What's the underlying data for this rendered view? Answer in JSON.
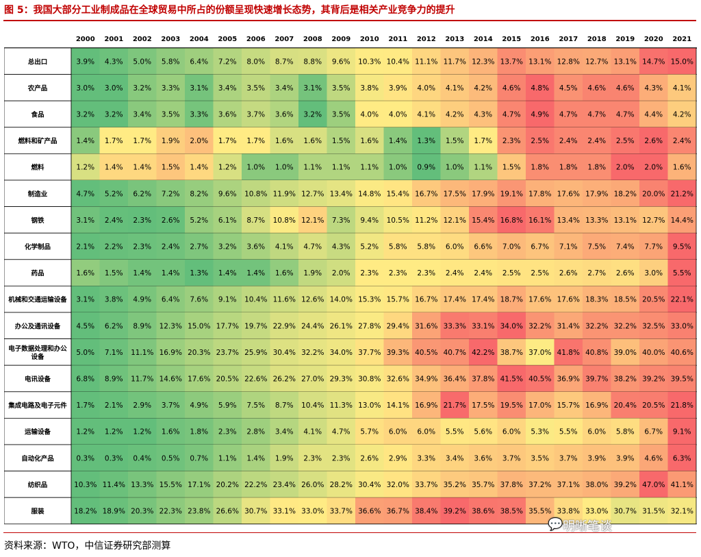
{
  "header": {
    "title": "图 5：我国大部分工业制成品在全球贸易中所占的份额呈现快速增长态势，其背后是相关产业竞争力的提升"
  },
  "footer": {
    "source": "资料来源：WTO，中信证券研究部测算",
    "watermark": "明晰笔谈"
  },
  "chart_data": {
    "type": "heatmap",
    "title": "图 5：我国大部分工业制成品在全球贸易中所占的份额呈现快速增长态势，其背后是相关产业竞争力的提升",
    "x": [
      "2000",
      "2001",
      "2002",
      "2003",
      "2004",
      "2005",
      "2006",
      "2007",
      "2008",
      "2009",
      "2010",
      "2011",
      "2012",
      "2013",
      "2014",
      "2015",
      "2016",
      "2017",
      "2018",
      "2019",
      "2020",
      "2021"
    ],
    "value_format": "percent_one_decimal",
    "color_scale": "per-row: green (low) -> yellow (mid) -> red (high)",
    "colors": {
      "low": "#63BE7B",
      "mid": "#FFEB84",
      "high": "#F8696B",
      "rule": "#C00000"
    },
    "rows": [
      {
        "label": "总出口",
        "values": [
          3.9,
          4.3,
          5.0,
          5.8,
          6.4,
          7.2,
          8.0,
          8.7,
          8.8,
          9.6,
          10.3,
          10.4,
          11.1,
          11.7,
          12.3,
          13.7,
          13.1,
          12.8,
          12.7,
          13.1,
          14.7,
          15.0
        ]
      },
      {
        "label": "农产品",
        "values": [
          3.0,
          3.0,
          3.2,
          3.3,
          3.1,
          3.4,
          3.5,
          3.4,
          3.1,
          3.5,
          3.8,
          3.9,
          4.0,
          4.1,
          4.2,
          4.6,
          4.8,
          4.5,
          4.6,
          4.6,
          4.3,
          4.1
        ]
      },
      {
        "label": "食品",
        "values": [
          3.2,
          3.2,
          3.4,
          3.5,
          3.3,
          3.6,
          3.7,
          3.6,
          3.2,
          3.5,
          4.0,
          4.0,
          4.1,
          4.2,
          4.3,
          4.7,
          4.9,
          4.7,
          4.7,
          4.7,
          4.4,
          4.2
        ]
      },
      {
        "label": "燃料和矿产品",
        "values": [
          1.4,
          1.7,
          1.7,
          1.9,
          2.0,
          1.7,
          1.7,
          1.6,
          1.6,
          1.5,
          1.6,
          1.4,
          1.3,
          1.5,
          1.7,
          2.3,
          2.5,
          2.4,
          2.4,
          2.5,
          2.6,
          2.4
        ]
      },
      {
        "label": "燃料",
        "values": [
          1.2,
          1.4,
          1.4,
          1.5,
          1.4,
          1.2,
          1.0,
          1.0,
          1.1,
          1.1,
          1.1,
          1.0,
          0.9,
          1.0,
          1.1,
          1.5,
          1.8,
          1.8,
          1.8,
          2.0,
          2.0,
          1.6
        ]
      },
      {
        "label": "制造业",
        "values": [
          4.7,
          5.2,
          6.2,
          7.2,
          8.2,
          9.6,
          10.8,
          11.9,
          12.7,
          13.4,
          14.8,
          15.4,
          16.7,
          17.5,
          17.9,
          19.1,
          17.8,
          17.6,
          17.9,
          18.2,
          20.0,
          21.2
        ]
      },
      {
        "label": "钢铁",
        "values": [
          3.1,
          2.4,
          2.3,
          2.6,
          5.2,
          6.1,
          8.7,
          10.8,
          12.1,
          7.3,
          9.4,
          10.5,
          11.2,
          12.1,
          15.4,
          16.8,
          16.1,
          13.4,
          13.3,
          13.1,
          12.7,
          14.4
        ]
      },
      {
        "label": "化学制品",
        "values": [
          2.1,
          2.2,
          2.3,
          2.4,
          2.7,
          3.2,
          3.6,
          4.1,
          4.7,
          4.3,
          5.2,
          5.8,
          5.8,
          6.0,
          6.6,
          7.0,
          6.7,
          7.1,
          7.5,
          7.4,
          7.7,
          9.5
        ]
      },
      {
        "label": "药品",
        "values": [
          1.6,
          1.5,
          1.4,
          1.4,
          1.3,
          1.4,
          1.4,
          1.6,
          1.9,
          2.0,
          2.3,
          2.3,
          2.3,
          2.4,
          2.4,
          2.5,
          2.5,
          2.6,
          2.7,
          2.6,
          3.0,
          5.5
        ]
      },
      {
        "label": "机械和交通运输设备",
        "values": [
          3.1,
          3.8,
          4.9,
          6.4,
          7.6,
          9.1,
          10.4,
          11.6,
          12.6,
          14.0,
          15.3,
          15.7,
          16.7,
          17.4,
          17.4,
          18.7,
          17.6,
          17.6,
          18.3,
          18.5,
          20.5,
          22.1
        ]
      },
      {
        "label": "办公及通讯设备",
        "values": [
          4.5,
          6.2,
          8.9,
          12.3,
          15.0,
          17.7,
          19.7,
          22.9,
          24.4,
          26.1,
          27.8,
          29.4,
          31.6,
          33.3,
          33.1,
          34.0,
          32.2,
          31.4,
          32.2,
          32.2,
          32.5,
          33.0
        ]
      },
      {
        "label": "电子数据处理和办公设备",
        "values": [
          5.0,
          7.1,
          11.1,
          16.9,
          20.3,
          23.7,
          25.9,
          30.4,
          32.2,
          34.0,
          37.7,
          39.3,
          40.5,
          40.7,
          42.2,
          38.7,
          37.0,
          41.8,
          40.8,
          39.0,
          40.0,
          40.6
        ]
      },
      {
        "label": "电讯设备",
        "values": [
          6.8,
          8.9,
          11.7,
          14.6,
          17.6,
          20.5,
          22.6,
          26.2,
          27.0,
          29.3,
          30.8,
          32.6,
          34.9,
          36.4,
          37.8,
          41.5,
          40.5,
          36.9,
          39.7,
          38.2,
          39.2,
          39.5
        ]
      },
      {
        "label": "集成电路及电子元件",
        "values": [
          1.7,
          2.1,
          2.9,
          3.7,
          4.9,
          5.9,
          7.5,
          8.7,
          10.4,
          11.3,
          13.0,
          14.1,
          16.9,
          21.7,
          17.5,
          19.5,
          17.0,
          15.7,
          16.9,
          20.4,
          20.5,
          21.8
        ]
      },
      {
        "label": "运输设备",
        "values": [
          1.2,
          1.2,
          1.2,
          1.6,
          1.8,
          2.3,
          2.8,
          3.4,
          4.1,
          4.7,
          5.7,
          6.0,
          6.0,
          5.5,
          5.6,
          6.0,
          5.3,
          5.5,
          6.0,
          5.8,
          6.7,
          9.1
        ]
      },
      {
        "label": "自动化产品",
        "values": [
          0.3,
          0.3,
          0.4,
          0.5,
          0.7,
          1.1,
          1.4,
          1.9,
          2.3,
          2.3,
          2.6,
          2.9,
          3.3,
          3.4,
          3.6,
          3.7,
          3.5,
          3.7,
          3.9,
          3.9,
          4.6,
          6.3
        ]
      },
      {
        "label": "纺织品",
        "values": [
          10.3,
          11.4,
          13.3,
          15.5,
          17.1,
          20.2,
          22.2,
          23.4,
          26.0,
          28.2,
          30.4,
          32.0,
          33.7,
          35.2,
          35.7,
          37.8,
          37.2,
          37.1,
          38.0,
          39.2,
          47.0,
          41.1
        ]
      },
      {
        "label": "服装",
        "values": [
          18.2,
          18.9,
          20.3,
          22.3,
          23.8,
          26.6,
          30.7,
          33.1,
          33.0,
          33.7,
          36.6,
          36.7,
          38.4,
          39.2,
          38.6,
          38.5,
          35.5,
          33.8,
          33.0,
          30.7,
          31.5,
          32.1
        ]
      }
    ]
  }
}
